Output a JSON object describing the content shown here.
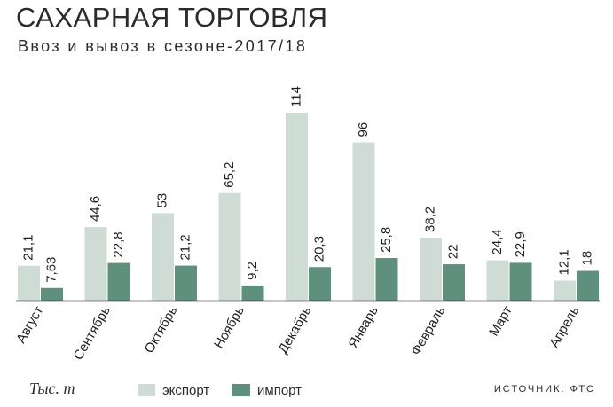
{
  "header": {
    "title": "САХАРНАЯ ТОРГОВЛЯ",
    "subtitle": "Ввоз и вывоз в сезоне-2017/18"
  },
  "footer": {
    "unit": "Тыс. т",
    "source": "ИСТОЧНИК: ФТС"
  },
  "legend": {
    "export": "экспорт",
    "import": "импорт"
  },
  "colors": {
    "export": "#cfdcd6",
    "import": "#5f8f7d",
    "axis": "#231f20"
  },
  "chart_data": {
    "type": "bar",
    "categories": [
      "Август",
      "Сентябрь",
      "Октябрь",
      "Ноябрь",
      "Декабрь",
      "Январь",
      "Февраль",
      "Март",
      "Апрель"
    ],
    "series": [
      {
        "name": "экспорт",
        "values": [
          21.1,
          44.6,
          53,
          65.2,
          114,
          96,
          38.2,
          24.4,
          12.1
        ],
        "labels": [
          "21,1",
          "44,6",
          "53",
          "65,2",
          "114",
          "96",
          "38,2",
          "24,4",
          "12,1"
        ]
      },
      {
        "name": "импорт",
        "values": [
          7.63,
          22.8,
          21.2,
          9.2,
          20.3,
          25.8,
          22,
          22.9,
          18
        ],
        "labels": [
          "7,63",
          "22,8",
          "21,2",
          "9,2",
          "20,3",
          "25,8",
          "22",
          "22,9",
          "18"
        ]
      }
    ],
    "ylim": [
      0,
      114
    ],
    "grid": false,
    "legend_position": "bottom"
  }
}
